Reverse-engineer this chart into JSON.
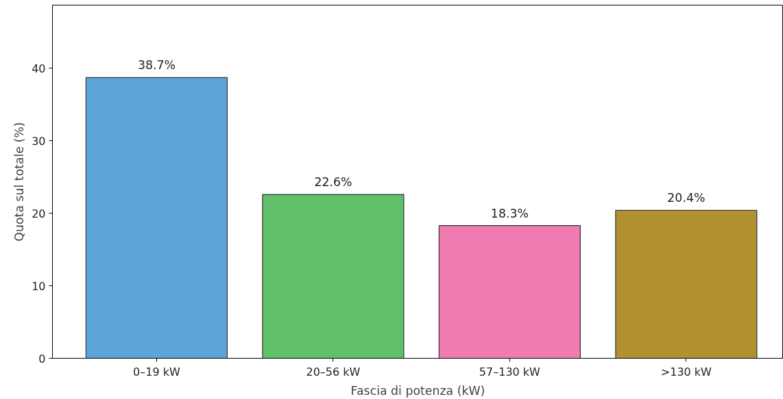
{
  "chart_data": {
    "type": "bar",
    "xlabel": "Fascia di potenza (kW)",
    "ylabel": "Quota sul totale (%)",
    "categories": [
      "0–19 kW",
      "20–56 kW",
      "57–130 kW",
      ">130 kW"
    ],
    "values": [
      38.7,
      22.6,
      18.3,
      20.4
    ],
    "colors": [
      "#5ca4da",
      "#60bf6a",
      "#ef7bb0",
      "#b09030"
    ],
    "value_labels": [
      "38.7%",
      "22.6%",
      "18.3%",
      "20.4%"
    ],
    "ylim": [
      0,
      48.7
    ],
    "yticks": [
      0,
      10,
      20,
      30,
      40
    ],
    "grid": false
  }
}
